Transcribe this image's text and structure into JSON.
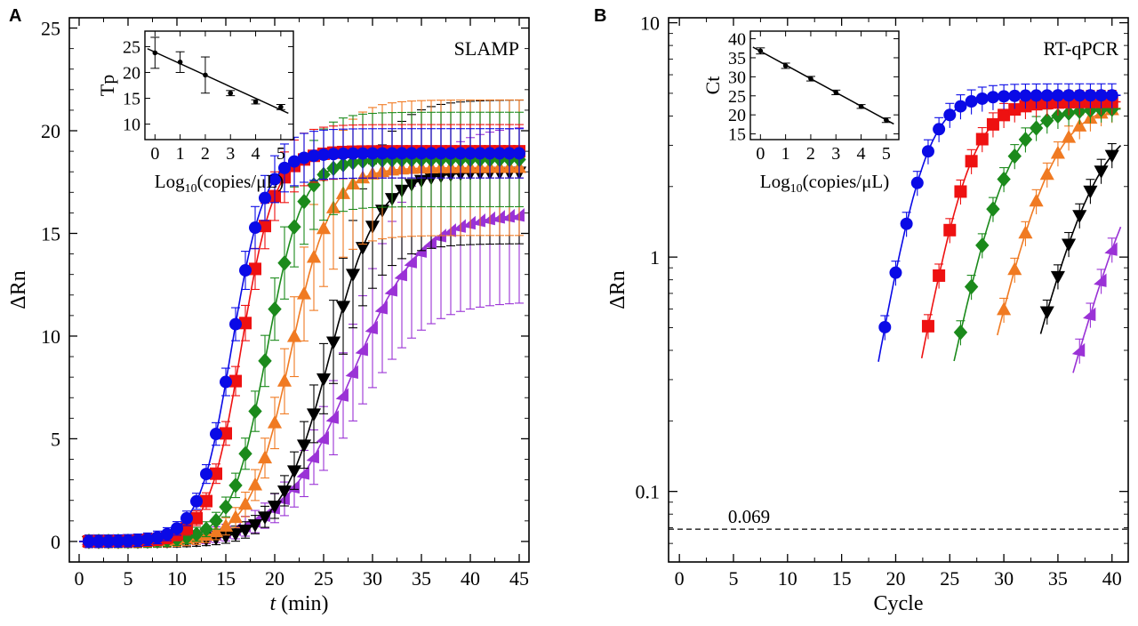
{
  "panels": {
    "a_letter": "A",
    "b_letter": "B"
  },
  "colors": {
    "blue": "#0a0ae6",
    "red": "#ee1111",
    "green": "#1b8a1b",
    "orange": "#f07a22",
    "black": "#000000",
    "purple": "#9a32d6"
  },
  "chart_data": [
    {
      "id": "A",
      "type": "line",
      "annotation": "SLAMP",
      "xlabel_italic": "t",
      "xlabel_rest": " (min)",
      "ylabel": "ΔRn",
      "xlim": [
        -1,
        46
      ],
      "ylim": [
        -1,
        25.5
      ],
      "xticks": [
        0,
        5,
        10,
        15,
        20,
        25,
        30,
        35,
        40,
        45
      ],
      "yticks": [
        0,
        5,
        10,
        15,
        20,
        25
      ],
      "marker_interval_min": 1,
      "series": [
        {
          "color_key": "blue",
          "marker": "circle",
          "midpoint": 15.6,
          "slope": 0.6,
          "plateau": 18.9,
          "err_sd": 0.9
        },
        {
          "color_key": "red",
          "marker": "square",
          "midpoint": 16.6,
          "slope": 0.6,
          "plateau": 19.0,
          "err_sd": 1.0
        },
        {
          "color_key": "green",
          "marker": "diamond",
          "midpoint": 19.2,
          "slope": 0.55,
          "plateau": 18.6,
          "err_sd": 2.0
        },
        {
          "color_key": "orange",
          "marker": "triangle-up",
          "midpoint": 21.6,
          "slope": 0.48,
          "plateau": 18.2,
          "err_sd": 3.0
        },
        {
          "color_key": "black",
          "marker": "triangle-down",
          "midpoint": 25.6,
          "slope": 0.4,
          "plateau": 18.0,
          "err_sd": 3.2
        },
        {
          "color_key": "purple",
          "marker": "triangle-right",
          "midpoint": 27.8,
          "slope": 0.28,
          "plateau": 16.0,
          "err_sd": 4.0
        }
      ],
      "inset": {
        "ylabel": "Tp",
        "xlabel_main": "Log",
        "xlabel_sub": "10",
        "xlabel_rest": "(copies/μL)",
        "xlim": [
          -0.4,
          5.5
        ],
        "ylim": [
          7,
          28
        ],
        "xticks": [
          0,
          1,
          2,
          3,
          4,
          5
        ],
        "yticks": [
          10,
          15,
          20,
          25
        ],
        "points": [
          {
            "x": 0,
            "y": 23.8,
            "err": 3.0
          },
          {
            "x": 1,
            "y": 22.0,
            "err": 2.0
          },
          {
            "x": 2,
            "y": 19.5,
            "err": 3.5
          },
          {
            "x": 3,
            "y": 16.0,
            "err": 0.5
          },
          {
            "x": 4,
            "y": 14.3,
            "err": 0.4
          },
          {
            "x": 5,
            "y": 13.3,
            "err": 0.5
          }
        ],
        "fit": {
          "x0": -0.3,
          "y0": 24.6,
          "x1": 5.3,
          "y1": 12.1
        }
      }
    },
    {
      "id": "B",
      "type": "line",
      "annotation": "RT-qPCR",
      "xlabel": "Cycle",
      "ylabel": "ΔRn",
      "yscale": "log",
      "xlim": [
        -1,
        41.5
      ],
      "ylim": [
        0.05,
        10.5
      ],
      "xticks": [
        0,
        5,
        10,
        15,
        20,
        25,
        30,
        35,
        40
      ],
      "yticks": [
        0.1,
        1,
        10
      ],
      "ytick_labels": [
        "0.1",
        "1",
        "10"
      ],
      "threshold": {
        "value": 0.069,
        "label": "0.069"
      },
      "series": [
        {
          "color_key": "blue",
          "marker": "circle",
          "start_cycle": 19,
          "midpoint": 22.5,
          "slope": 0.62,
          "plateau": 4.9
        },
        {
          "color_key": "red",
          "marker": "square",
          "start_cycle": 23,
          "midpoint": 26.6,
          "slope": 0.58,
          "plateau": 4.6
        },
        {
          "color_key": "green",
          "marker": "diamond",
          "start_cycle": 26,
          "midpoint": 30.0,
          "slope": 0.52,
          "plateau": 4.3
        },
        {
          "color_key": "orange",
          "marker": "triangle-up",
          "start_cycle": 30,
          "midpoint": 34.0,
          "slope": 0.47,
          "plateau": 4.5
        },
        {
          "color_key": "black",
          "marker": "triangle-down",
          "start_cycle": 34,
          "midpoint": 38.2,
          "slope": 0.42,
          "plateau": 4.0
        },
        {
          "color_key": "purple",
          "marker": "triangle-right",
          "start_cycle": 37,
          "midpoint": 42.5,
          "slope": 0.4,
          "plateau": 4.0
        }
      ],
      "inset": {
        "ylabel": "Ct",
        "xlabel_main": "Log",
        "xlabel_sub": "10",
        "xlabel_rest": "(copies/μL)",
        "xlim": [
          -0.4,
          5.5
        ],
        "ylim": [
          13.5,
          42
        ],
        "xticks": [
          0,
          1,
          2,
          3,
          4,
          5
        ],
        "yticks": [
          15,
          20,
          25,
          30,
          35,
          40
        ],
        "points": [
          {
            "x": 0,
            "y": 36.8,
            "err": 0.8
          },
          {
            "x": 1,
            "y": 32.9,
            "err": 0.7
          },
          {
            "x": 2,
            "y": 29.5,
            "err": 0.6
          },
          {
            "x": 3,
            "y": 25.9,
            "err": 0.6
          },
          {
            "x": 4,
            "y": 22.2,
            "err": 0.5
          },
          {
            "x": 5,
            "y": 18.6,
            "err": 0.6
          }
        ],
        "fit": {
          "x0": -0.3,
          "y0": 37.8,
          "x1": 5.3,
          "y1": 17.6
        }
      }
    }
  ]
}
